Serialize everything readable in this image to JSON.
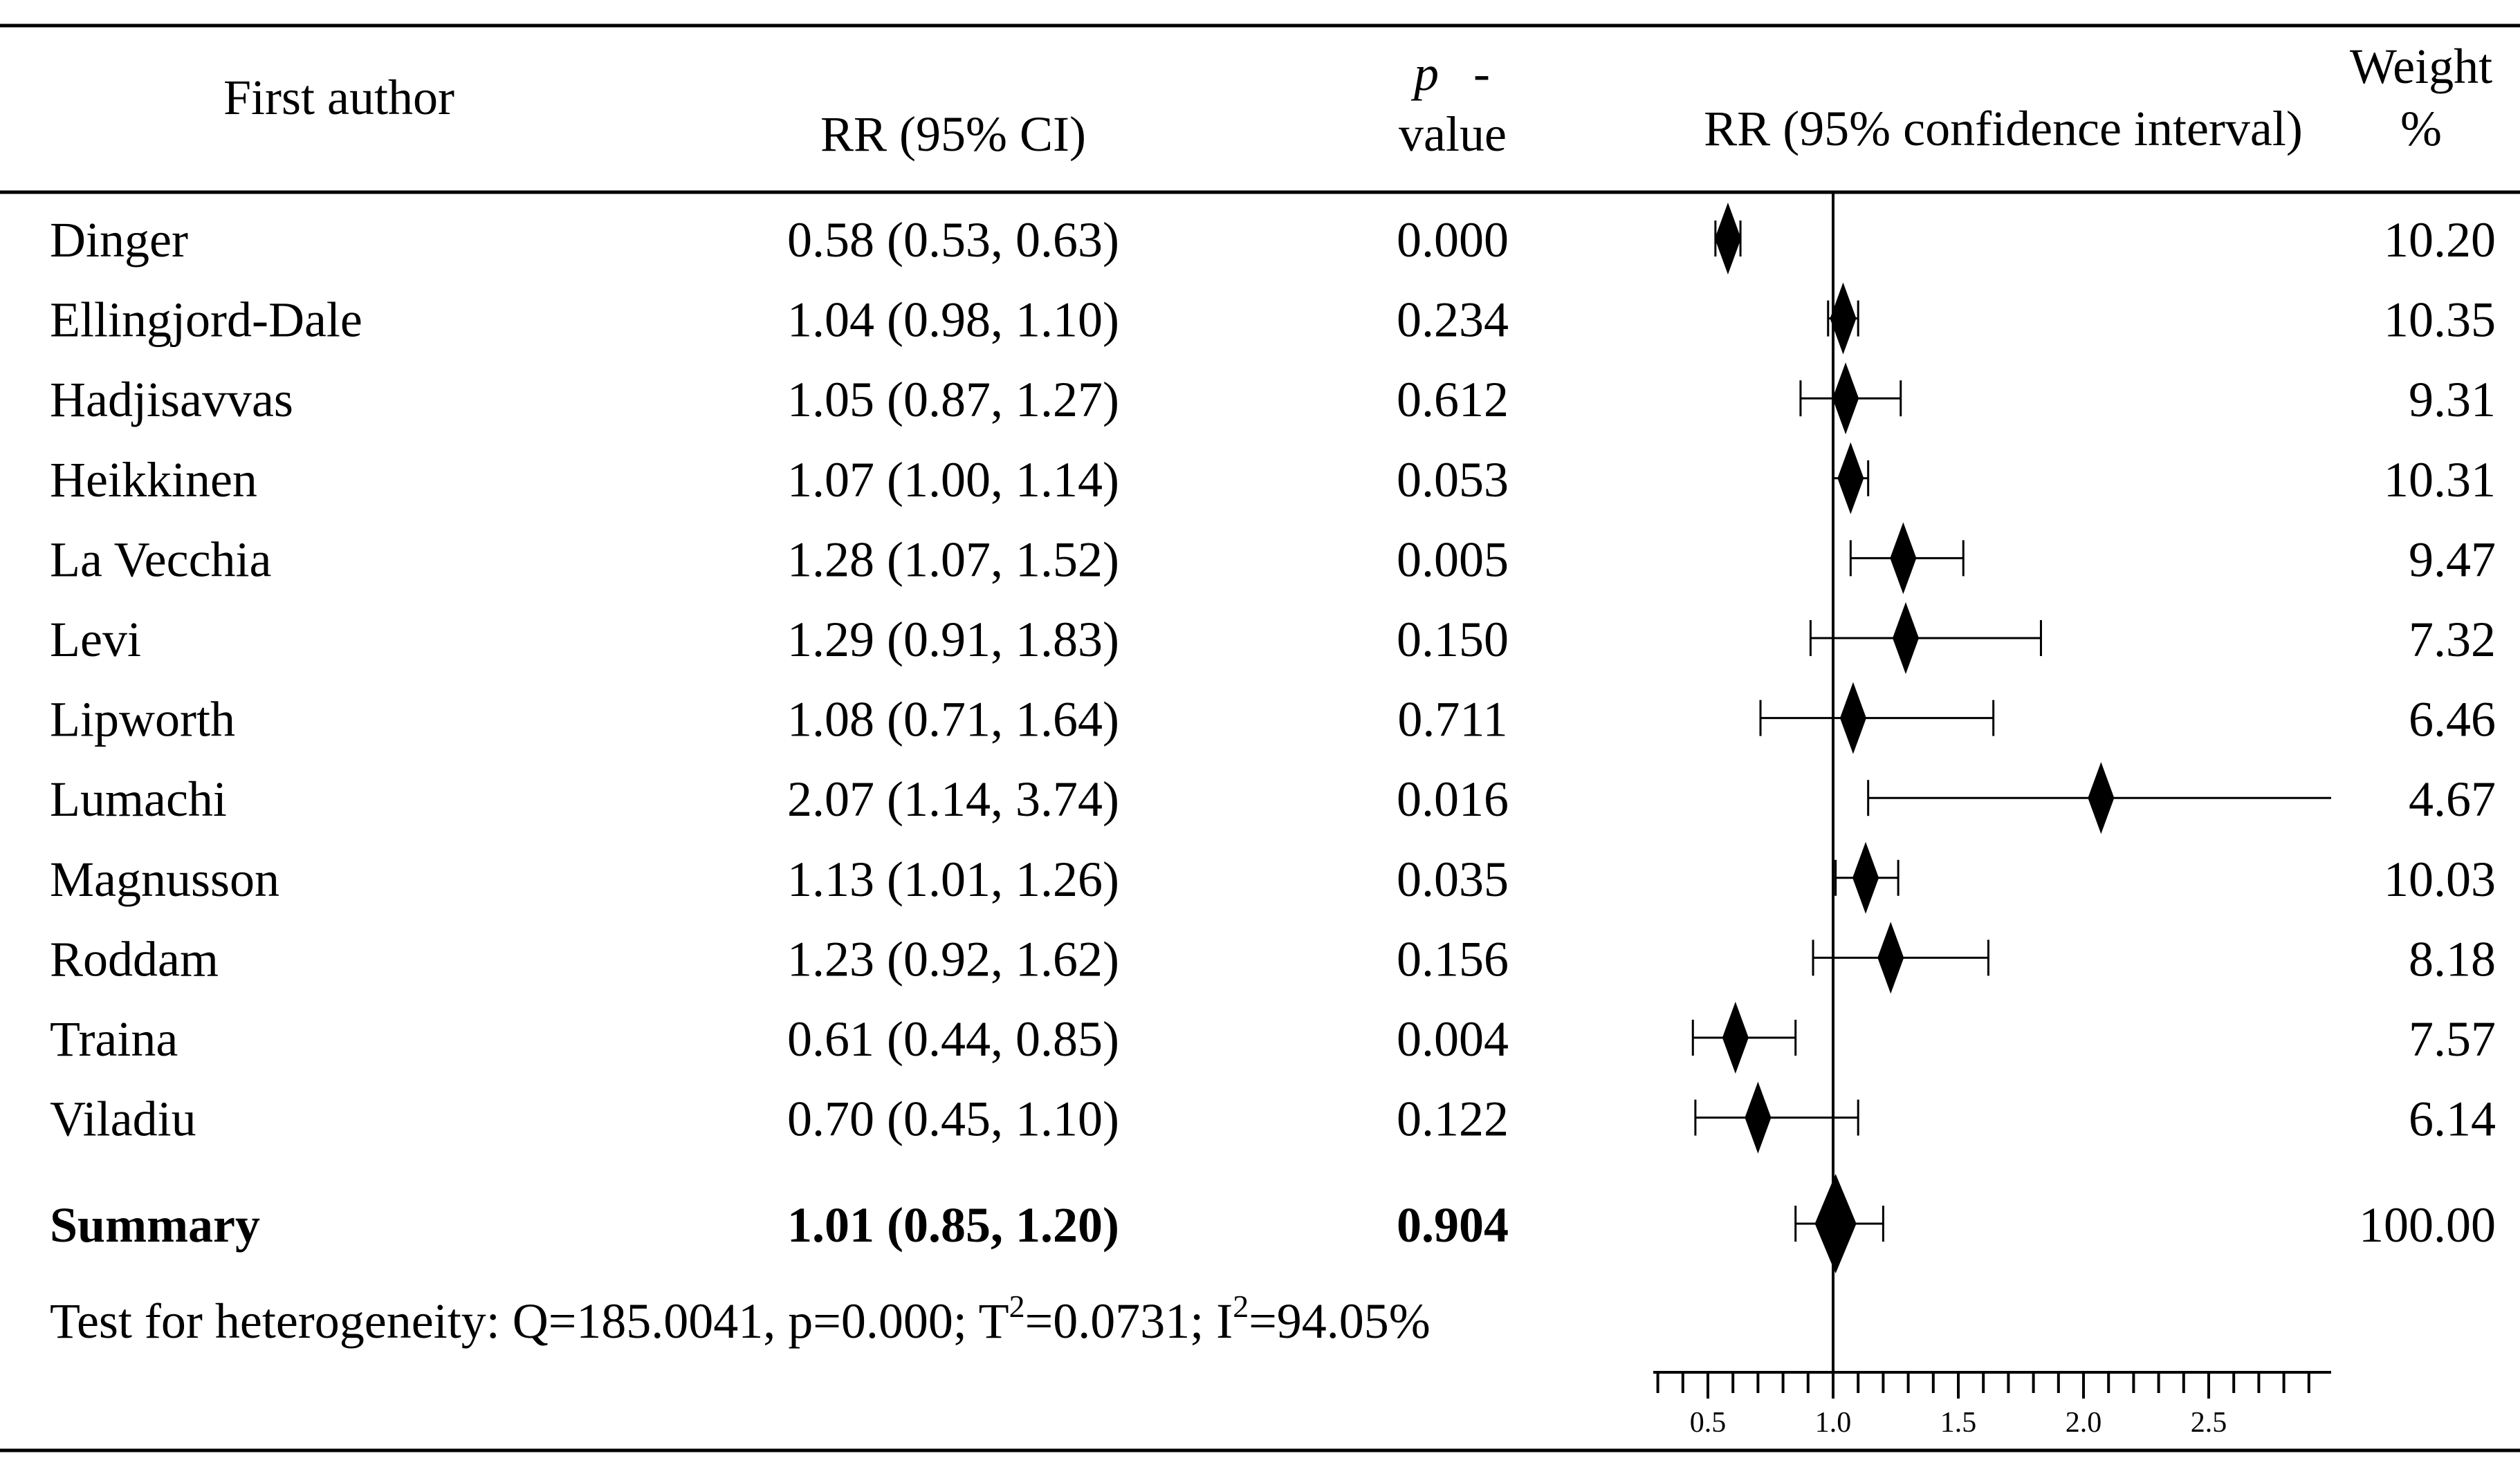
{
  "chart_data": {
    "type": "forest",
    "headers": {
      "author": "First author",
      "rr_ci": "RR (95% CI)",
      "p_line1": "p",
      "p_dash": "-",
      "p_line2": "value",
      "plot": "RR (95% confidence interval)",
      "weight_line1": "Weight",
      "weight_line2": "%"
    },
    "x_axis": {
      "min": 0.3,
      "max": 3.0,
      "minor_step": 0.1,
      "labels": [
        "0.5",
        "1.0",
        "1.5",
        "2.0",
        "2.5"
      ],
      "reference": 1.0
    },
    "studies": [
      {
        "author": "Dinger",
        "rr_text": "0.58 (0.53, 0.63)",
        "p": "0.000",
        "weight": "10.20",
        "rr": 0.58,
        "lo": 0.53,
        "hi": 0.63
      },
      {
        "author": "Ellingjord-Dale",
        "rr_text": "1.04 (0.98, 1.10)",
        "p": "0.234",
        "weight": "10.35",
        "rr": 1.04,
        "lo": 0.98,
        "hi": 1.1
      },
      {
        "author": "Hadjisavvas",
        "rr_text": "1.05 (0.87, 1.27)",
        "p": "0.612",
        "weight": "9.31",
        "rr": 1.05,
        "lo": 0.87,
        "hi": 1.27
      },
      {
        "author": "Heikkinen",
        "rr_text": "1.07 (1.00, 1.14)",
        "p": "0.053",
        "weight": "10.31",
        "rr": 1.07,
        "lo": 1.0,
        "hi": 1.14
      },
      {
        "author": "La Vecchia",
        "rr_text": "1.28 (1.07, 1.52)",
        "p": "0.005",
        "weight": "9.47",
        "rr": 1.28,
        "lo": 1.07,
        "hi": 1.52
      },
      {
        "author": "Levi",
        "rr_text": "1.29 (0.91, 1.83)",
        "p": "0.150",
        "weight": "7.32",
        "rr": 1.29,
        "lo": 0.91,
        "hi": 1.83
      },
      {
        "author": "Lipworth",
        "rr_text": "1.08 (0.71, 1.64)",
        "p": "0.711",
        "weight": "6.46",
        "rr": 1.08,
        "lo": 0.71,
        "hi": 1.64
      },
      {
        "author": "Lumachi",
        "rr_text": "2.07 (1.14, 3.74)",
        "p": "0.016",
        "weight": "4.67",
        "rr": 2.07,
        "lo": 1.14,
        "hi": 3.74
      },
      {
        "author": "Magnusson",
        "rr_text": "1.13 (1.01, 1.26)",
        "p": "0.035",
        "weight": "10.03",
        "rr": 1.13,
        "lo": 1.01,
        "hi": 1.26
      },
      {
        "author": "Roddam",
        "rr_text": "1.23 (0.92, 1.62)",
        "p": "0.156",
        "weight": "8.18",
        "rr": 1.23,
        "lo": 0.92,
        "hi": 1.62
      },
      {
        "author": "Traina",
        "rr_text": "0.61 (0.44, 0.85)",
        "p": "0.004",
        "weight": "7.57",
        "rr": 0.61,
        "lo": 0.44,
        "hi": 0.85
      },
      {
        "author": "Viladiu",
        "rr_text": "0.70 (0.45, 1.10)",
        "p": "0.122",
        "weight": "6.14",
        "rr": 0.7,
        "lo": 0.45,
        "hi": 1.1
      }
    ],
    "summary": {
      "author": "Summary",
      "rr_text": "1.01 (0.85, 1.20)",
      "p": "0.904",
      "weight": "100.00",
      "rr": 1.01,
      "lo": 0.85,
      "hi": 1.2
    },
    "heterogeneity": {
      "prefix": "Test for heterogeneity: Q=185.0041, p=0.000; T",
      "sup1": "2",
      "middle": "=0.0731; I",
      "sup2": "2",
      "suffix": "=94.05%"
    }
  }
}
